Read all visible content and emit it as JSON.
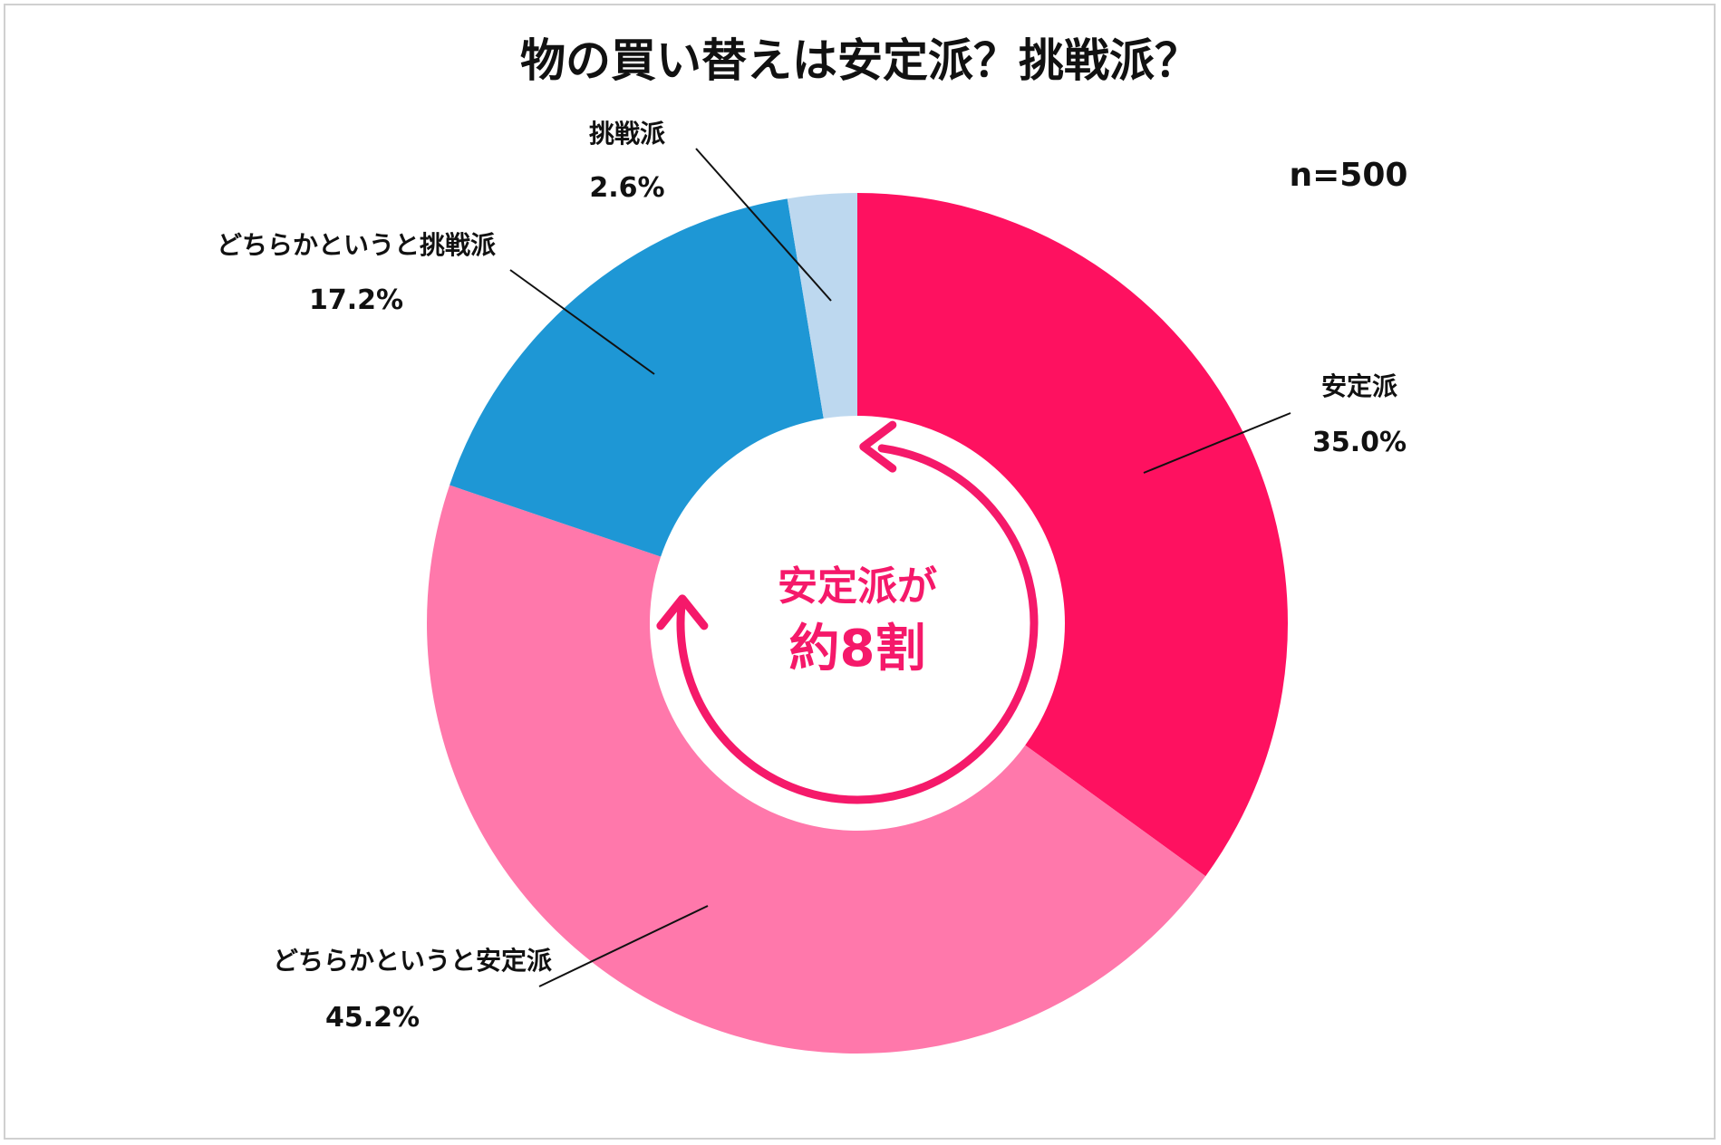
{
  "chart_data": {
    "type": "pie",
    "title": "物の買い替えは安定派？挑戦派？",
    "sample_size": "n=500",
    "center_annotation": {
      "line1": "安定派が",
      "line2": "約8割"
    },
    "slices": [
      {
        "label": "安定派",
        "value": 35.0,
        "value_label": "35.0%",
        "color": "#fe1160"
      },
      {
        "label": "どちらかというと安定派",
        "value": 45.2,
        "value_label": "45.2%",
        "color": "#ff78ab"
      },
      {
        "label": "どちらかというと挑戦派",
        "value": 17.2,
        "value_label": "17.2%",
        "color": "#1e97d5"
      },
      {
        "label": "挑戦派",
        "value": 2.6,
        "value_label": "2.6%",
        "color": "#bdd8ef"
      }
    ],
    "legend": "none",
    "arrow_color": "#f5196a"
  }
}
